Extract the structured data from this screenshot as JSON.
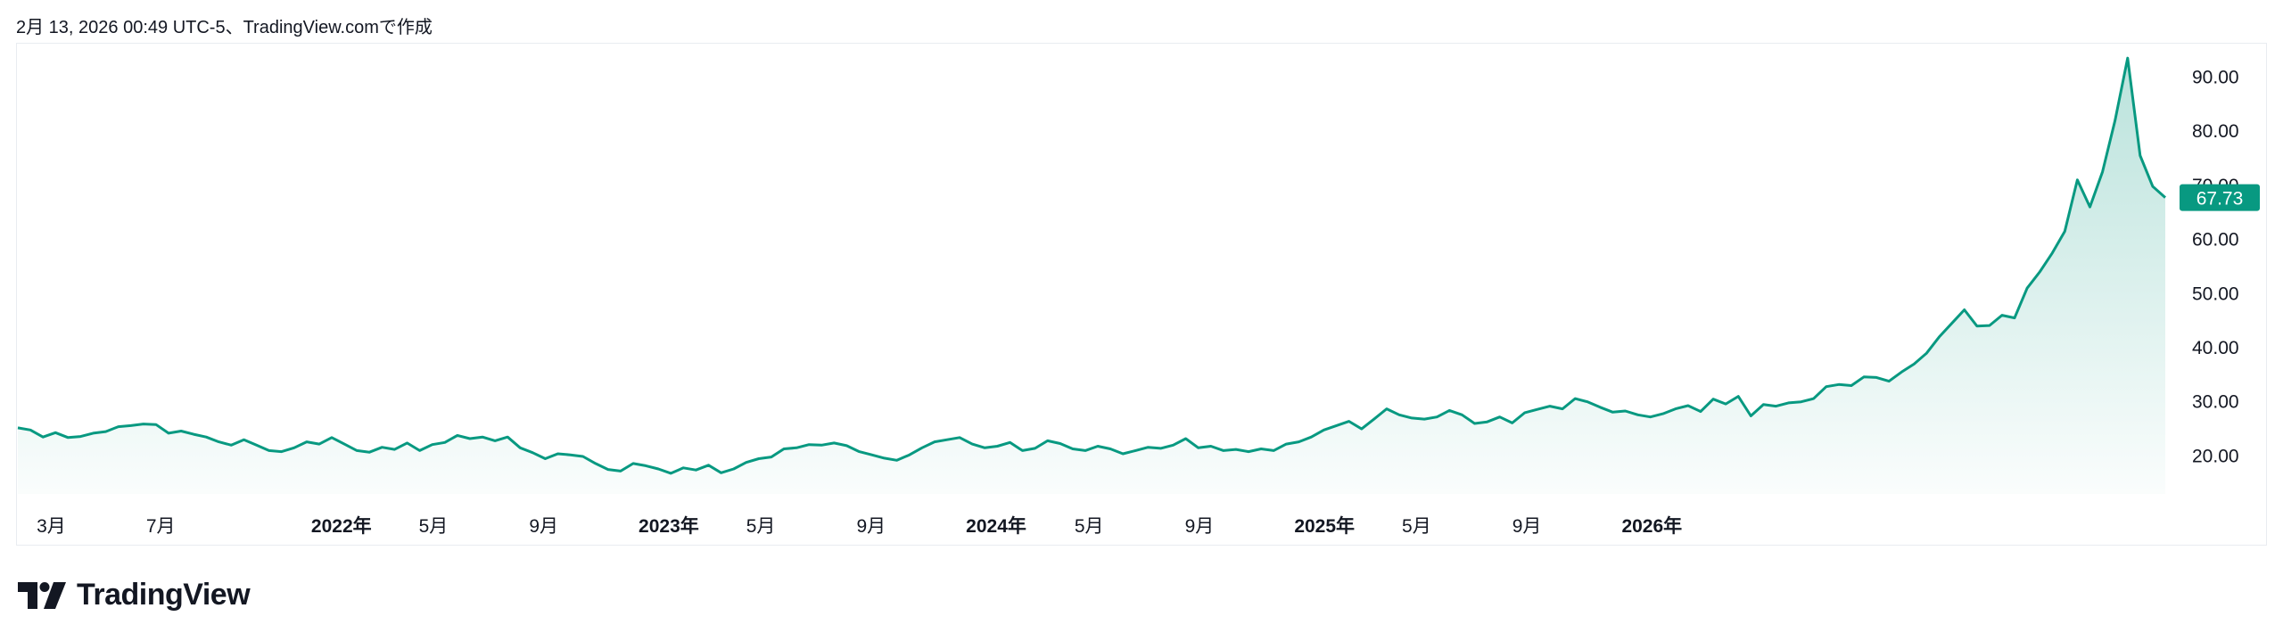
{
  "caption": "2月 13, 2026 00:49 UTC-5、TradingView.comで作成",
  "brand": {
    "name": "TradingView",
    "logo_icon": "tradingview-logo-icon"
  },
  "colors": {
    "line": "#089981",
    "fill_top": "#089981",
    "label_bg": "#089981",
    "label_text": "#ffffff",
    "axis_text": "#131722"
  },
  "chart_data": {
    "type": "area",
    "title": "",
    "xlabel": "",
    "ylabel": "",
    "ylim": [
      12,
      96
    ],
    "y_ticks": [
      "20.00",
      "30.00",
      "40.00",
      "50.00",
      "60.00",
      "70.00",
      "80.00",
      "90.00"
    ],
    "last_value_label": "67.73",
    "grid": false,
    "x_tick_labels": [
      {
        "label": "3月",
        "date": "2021-03-01",
        "bold": false
      },
      {
        "label": "7月",
        "date": "2021-07-01",
        "bold": false
      },
      {
        "label": "2022年",
        "date": "2022-01-01",
        "bold": true
      },
      {
        "label": "5月",
        "date": "2022-05-01",
        "bold": false
      },
      {
        "label": "9月",
        "date": "2022-09-01",
        "bold": false
      },
      {
        "label": "2023年",
        "date": "2023-01-01",
        "bold": true
      },
      {
        "label": "5月",
        "date": "2023-05-01",
        "bold": false
      },
      {
        "label": "9月",
        "date": "2023-09-01",
        "bold": false
      },
      {
        "label": "2024年",
        "date": "2024-01-01",
        "bold": true
      },
      {
        "label": "5月",
        "date": "2024-05-01",
        "bold": false
      },
      {
        "label": "9月",
        "date": "2024-09-01",
        "bold": false
      },
      {
        "label": "2025年",
        "date": "2025-01-01",
        "bold": true
      },
      {
        "label": "5月",
        "date": "2025-05-01",
        "bold": false
      },
      {
        "label": "9月",
        "date": "2025-09-01",
        "bold": false
      },
      {
        "label": "2026年",
        "date": "2026-01-01",
        "bold": true
      }
    ],
    "series": [
      {
        "points": [
          [
            "2021-02-08",
            25.2
          ],
          [
            "2021-02-22",
            24.8
          ],
          [
            "2021-03-08",
            23.5
          ],
          [
            "2021-03-22",
            24.3
          ],
          [
            "2021-04-05",
            23.4
          ],
          [
            "2021-04-19",
            23.6
          ],
          [
            "2021-05-03",
            24.2
          ],
          [
            "2021-05-17",
            24.5
          ],
          [
            "2021-05-31",
            25.4
          ],
          [
            "2021-06-14",
            25.6
          ],
          [
            "2021-06-28",
            25.9
          ],
          [
            "2021-07-12",
            25.8
          ],
          [
            "2021-07-26",
            24.2
          ],
          [
            "2021-08-09",
            24.6
          ],
          [
            "2021-08-23",
            24.0
          ],
          [
            "2021-09-06",
            23.5
          ],
          [
            "2021-09-20",
            22.6
          ],
          [
            "2021-10-04",
            22.0
          ],
          [
            "2021-10-18",
            23.0
          ],
          [
            "2021-11-01",
            22.0
          ],
          [
            "2021-11-15",
            21.0
          ],
          [
            "2021-11-29",
            20.8
          ],
          [
            "2021-12-13",
            21.5
          ],
          [
            "2021-12-27",
            22.6
          ],
          [
            "2022-01-10",
            22.2
          ],
          [
            "2022-01-24",
            23.4
          ],
          [
            "2022-02-07",
            22.2
          ],
          [
            "2022-02-21",
            21.0
          ],
          [
            "2022-03-07",
            20.7
          ],
          [
            "2022-03-21",
            21.6
          ],
          [
            "2022-04-04",
            21.2
          ],
          [
            "2022-04-18",
            22.4
          ],
          [
            "2022-05-02",
            21.0
          ],
          [
            "2022-05-16",
            22.1
          ],
          [
            "2022-05-30",
            22.5
          ],
          [
            "2022-06-13",
            23.8
          ],
          [
            "2022-06-27",
            23.2
          ],
          [
            "2022-07-11",
            23.5
          ],
          [
            "2022-07-25",
            22.8
          ],
          [
            "2022-08-08",
            23.5
          ],
          [
            "2022-08-22",
            21.5
          ],
          [
            "2022-09-05",
            20.6
          ],
          [
            "2022-09-19",
            19.5
          ],
          [
            "2022-10-03",
            20.4
          ],
          [
            "2022-10-17",
            20.2
          ],
          [
            "2022-10-31",
            19.9
          ],
          [
            "2022-11-14",
            18.6
          ],
          [
            "2022-11-28",
            17.5
          ],
          [
            "2022-12-12",
            17.2
          ],
          [
            "2022-12-26",
            18.6
          ],
          [
            "2023-01-09",
            18.2
          ],
          [
            "2023-01-23",
            17.6
          ],
          [
            "2023-02-06",
            16.8
          ],
          [
            "2023-02-20",
            17.8
          ],
          [
            "2023-03-06",
            17.4
          ],
          [
            "2023-03-20",
            18.3
          ],
          [
            "2023-04-03",
            16.9
          ],
          [
            "2023-04-17",
            17.6
          ],
          [
            "2023-05-01",
            18.8
          ],
          [
            "2023-05-15",
            19.5
          ],
          [
            "2023-05-29",
            19.8
          ],
          [
            "2023-06-12",
            21.3
          ],
          [
            "2023-06-26",
            21.5
          ],
          [
            "2023-07-10",
            22.1
          ],
          [
            "2023-07-24",
            22.0
          ],
          [
            "2023-08-07",
            22.4
          ],
          [
            "2023-08-21",
            21.9
          ],
          [
            "2023-09-04",
            20.8
          ],
          [
            "2023-09-18",
            20.2
          ],
          [
            "2023-10-02",
            19.6
          ],
          [
            "2023-10-16",
            19.2
          ],
          [
            "2023-10-30",
            20.2
          ],
          [
            "2023-11-13",
            21.5
          ],
          [
            "2023-11-27",
            22.6
          ],
          [
            "2023-12-11",
            23.0
          ],
          [
            "2023-12-25",
            23.4
          ],
          [
            "2024-01-08",
            22.2
          ],
          [
            "2024-01-22",
            21.5
          ],
          [
            "2024-02-05",
            21.8
          ],
          [
            "2024-02-19",
            22.5
          ],
          [
            "2024-03-04",
            21.0
          ],
          [
            "2024-03-18",
            21.4
          ],
          [
            "2024-04-01",
            22.8
          ],
          [
            "2024-04-15",
            22.3
          ],
          [
            "2024-04-29",
            21.3
          ],
          [
            "2024-05-13",
            21.0
          ],
          [
            "2024-05-27",
            21.8
          ],
          [
            "2024-06-10",
            21.3
          ],
          [
            "2024-06-24",
            20.4
          ],
          [
            "2024-07-08",
            21.0
          ],
          [
            "2024-07-22",
            21.6
          ],
          [
            "2024-08-05",
            21.4
          ],
          [
            "2024-08-19",
            22.0
          ],
          [
            "2024-09-02",
            23.2
          ],
          [
            "2024-09-16",
            21.5
          ],
          [
            "2024-09-30",
            21.8
          ],
          [
            "2024-10-14",
            21.0
          ],
          [
            "2024-10-28",
            21.2
          ],
          [
            "2024-11-11",
            20.8
          ],
          [
            "2024-11-25",
            21.3
          ],
          [
            "2024-12-09",
            21.0
          ],
          [
            "2024-12-23",
            22.2
          ],
          [
            "2025-01-06",
            22.6
          ],
          [
            "2025-01-20",
            23.5
          ],
          [
            "2025-02-03",
            24.8
          ],
          [
            "2025-02-17",
            25.6
          ],
          [
            "2025-03-03",
            26.4
          ],
          [
            "2025-03-17",
            25.0
          ],
          [
            "2025-03-31",
            26.8
          ],
          [
            "2025-04-14",
            28.7
          ],
          [
            "2025-04-28",
            27.6
          ],
          [
            "2025-05-12",
            27.0
          ],
          [
            "2025-05-26",
            26.8
          ],
          [
            "2025-06-09",
            27.2
          ],
          [
            "2025-06-23",
            28.4
          ],
          [
            "2025-07-07",
            27.6
          ],
          [
            "2025-07-21",
            26.0
          ],
          [
            "2025-08-04",
            26.3
          ],
          [
            "2025-08-18",
            27.2
          ],
          [
            "2025-09-01",
            26.1
          ],
          [
            "2025-09-15",
            28.0
          ],
          [
            "2025-09-29",
            28.6
          ],
          [
            "2025-10-13",
            29.2
          ],
          [
            "2025-10-27",
            28.7
          ],
          [
            "2025-11-10",
            30.6
          ],
          [
            "2025-11-24",
            30.0
          ],
          [
            "2025-12-08",
            29.0
          ],
          [
            "2025-12-22",
            28.1
          ],
          [
            "2026-01-05",
            28.3
          ],
          [
            "2026-01-19",
            27.6
          ],
          [
            "2026-02-02",
            27.2
          ],
          [
            "2026-02-16",
            27.8
          ],
          [
            "2026-03-02",
            28.7
          ],
          [
            "2026-03-16",
            29.3
          ],
          [
            "2026-03-30",
            28.2
          ],
          [
            "2026-04-13",
            30.5
          ],
          [
            "2026-04-27",
            29.6
          ],
          [
            "2026-05-11",
            31.0
          ],
          [
            "2026-05-25",
            27.4
          ],
          [
            "2026-06-08",
            29.5
          ],
          [
            "2026-06-22",
            29.2
          ],
          [
            "2026-07-06",
            29.8
          ],
          [
            "2026-07-20",
            30.0
          ],
          [
            "2026-08-03",
            30.6
          ],
          [
            "2026-08-17",
            32.8
          ],
          [
            "2026-08-31",
            33.2
          ],
          [
            "2026-09-14",
            33.0
          ],
          [
            "2026-09-28",
            34.6
          ],
          [
            "2026-10-12",
            34.5
          ],
          [
            "2026-10-26",
            33.8
          ],
          [
            "2026-11-09",
            35.5
          ],
          [
            "2026-11-23",
            37.0
          ],
          [
            "2026-12-07",
            39.0
          ],
          [
            "2026-12-21",
            42.0
          ],
          [
            "2027-01-04",
            44.5
          ],
          [
            "2027-01-18",
            47.0
          ],
          [
            "2027-02-01",
            44.0
          ],
          [
            "2027-02-15",
            44.1
          ],
          [
            "2027-03-01",
            46.0
          ],
          [
            "2027-03-15",
            45.5
          ],
          [
            "2027-03-29",
            51.0
          ],
          [
            "2027-04-12",
            54.0
          ],
          [
            "2027-04-26",
            57.5
          ],
          [
            "2027-05-10",
            61.5
          ],
          [
            "2027-05-24",
            71.0
          ],
          [
            "2027-06-07",
            66.0
          ],
          [
            "2027-06-21",
            72.5
          ],
          [
            "2027-07-05",
            82.0
          ],
          [
            "2027-07-19",
            93.5
          ],
          [
            "2027-08-02",
            75.5
          ],
          [
            "2027-08-16",
            69.8
          ],
          [
            "2027-08-30",
            67.73
          ]
        ]
      }
    ]
  }
}
